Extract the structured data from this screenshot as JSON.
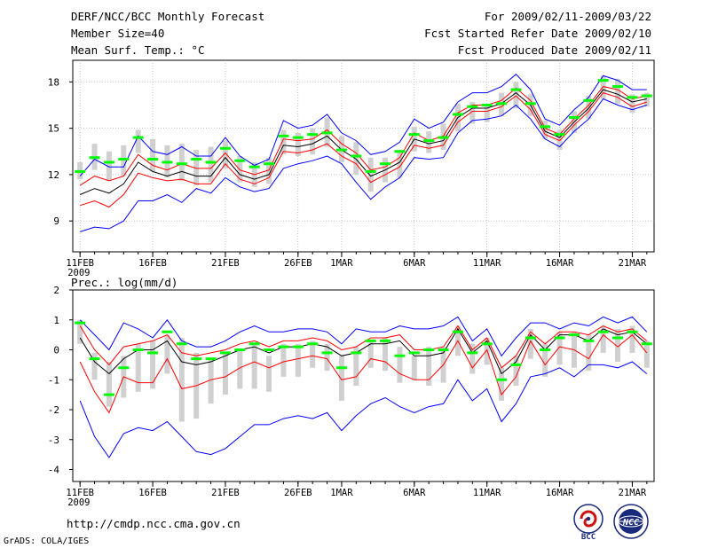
{
  "header": {
    "title": "DERF/NCC/BCC Monthly Forecast",
    "member_size": "Member Size=40",
    "variable_label": "Mean Surf. Temp.: °C",
    "period": "For 2009/02/11-2009/03/22",
    "fcst_started": "Fcst Started Refer Date 2009/02/10",
    "fcst_produced": "Fcst Produced Date 2009/02/11"
  },
  "footer": {
    "url": "http://cmdp.ncc.cma.gov.cn",
    "grads": "GrADS: COLA/IGES",
    "logo_bcc": "BCC",
    "logo_ncc": "NCC"
  },
  "colors": {
    "observed": "#00ff00",
    "ensemble_range": "#d0d0d0",
    "mean": "#000000",
    "spread_inner": "#ff0000",
    "spread_outer": "#0000ff",
    "grid": "#a0a0a0"
  },
  "chart_data": [
    {
      "type": "line",
      "title": "Mean Surf. Temp.: °C",
      "x_tick_labels": [
        "11FEB",
        "16FEB",
        "21FEB",
        "26FEB",
        "1MAR",
        "6MAR",
        "11MAR",
        "16MAR",
        "21MAR"
      ],
      "x_tick_days": [
        0,
        5,
        10,
        15,
        18,
        23,
        28,
        33,
        38
      ],
      "x_year_label": "2009",
      "x_range_days": [
        -0.5,
        39.5
      ],
      "ylim": [
        7,
        19.4
      ],
      "yticks": [
        9,
        12,
        15,
        18
      ],
      "grid": true,
      "days": [
        0,
        1,
        2,
        3,
        4,
        5,
        6,
        7,
        8,
        9,
        10,
        11,
        12,
        13,
        14,
        15,
        16,
        17,
        18,
        19,
        20,
        21,
        22,
        23,
        24,
        25,
        26,
        27,
        28,
        29,
        30,
        31,
        32,
        33,
        34,
        35,
        36,
        37,
        38,
        39
      ],
      "series": [
        {
          "name": "ensemble max",
          "color": "blue",
          "values": [
            11.9,
            13.0,
            12.5,
            12.5,
            14.5,
            13.5,
            13.3,
            13.8,
            13.2,
            13.2,
            14.4,
            13.2,
            12.6,
            13.0,
            15.5,
            15.0,
            15.2,
            15.9,
            14.7,
            14.2,
            13.3,
            13.5,
            14.1,
            15.6,
            15.0,
            15.4,
            16.7,
            17.3,
            17.3,
            17.7,
            18.5,
            17.5,
            15.6,
            15.2,
            16.2,
            17.0,
            18.4,
            18.1,
            17.5,
            17.5
          ]
        },
        {
          "name": "mean + spread",
          "color": "red",
          "values": [
            11.3,
            11.9,
            11.6,
            11.9,
            13.3,
            12.6,
            12.3,
            12.7,
            12.4,
            12.4,
            13.4,
            12.3,
            12.0,
            12.3,
            14.3,
            14.2,
            14.3,
            14.9,
            14.0,
            13.4,
            12.3,
            12.5,
            13.1,
            14.7,
            14.2,
            14.5,
            16.0,
            16.5,
            16.5,
            16.8,
            17.6,
            16.8,
            15.0,
            14.6,
            15.6,
            16.5,
            17.7,
            17.5,
            16.9,
            17.1
          ]
        },
        {
          "name": "ensemble mean",
          "color": "black",
          "values": [
            10.7,
            11.1,
            10.8,
            11.4,
            12.8,
            12.2,
            11.9,
            12.2,
            11.9,
            11.9,
            13.1,
            12.0,
            11.7,
            12.0,
            13.9,
            13.8,
            14.0,
            14.5,
            13.6,
            13.0,
            11.9,
            12.3,
            12.8,
            14.3,
            14.0,
            14.2,
            15.7,
            16.3,
            16.3,
            16.6,
            17.3,
            16.5,
            14.8,
            14.4,
            15.4,
            16.3,
            17.5,
            17.2,
            16.7,
            16.9
          ]
        },
        {
          "name": "mean - spread",
          "color": "red",
          "values": [
            10.0,
            10.3,
            9.9,
            10.7,
            12.1,
            11.8,
            11.6,
            11.7,
            11.4,
            11.4,
            12.7,
            11.7,
            11.4,
            11.8,
            13.5,
            13.4,
            13.6,
            14.0,
            13.2,
            12.7,
            11.5,
            12.0,
            12.5,
            13.9,
            13.7,
            13.9,
            15.4,
            16.1,
            16.1,
            16.4,
            17.1,
            16.2,
            14.6,
            14.2,
            15.2,
            16.1,
            17.3,
            17.0,
            16.4,
            16.7
          ]
        },
        {
          "name": "ensemble min",
          "color": "blue",
          "values": [
            8.3,
            8.6,
            8.5,
            9.0,
            10.3,
            10.3,
            10.7,
            10.2,
            11.1,
            10.8,
            11.8,
            11.2,
            10.9,
            11.1,
            12.4,
            12.7,
            12.9,
            13.2,
            12.7,
            11.5,
            10.4,
            11.2,
            11.8,
            13.1,
            13.0,
            13.1,
            14.7,
            15.5,
            15.6,
            15.8,
            16.5,
            15.6,
            14.3,
            13.8,
            14.8,
            15.6,
            16.9,
            16.5,
            16.2,
            16.5
          ]
        }
      ],
      "observed": [
        12.2,
        13.1,
        12.8,
        13.0,
        14.4,
        13.0,
        12.8,
        12.7,
        13.0,
        12.8,
        13.7,
        12.9,
        12.5,
        12.7,
        14.5,
        14.4,
        14.6,
        14.7,
        13.6,
        13.2,
        12.2,
        12.7,
        13.5,
        14.6,
        14.2,
        14.4,
        15.9,
        16.4,
        16.5,
        16.6,
        17.5,
        16.6,
        15.1,
        14.6,
        15.7,
        16.8,
        18.1,
        17.7,
        17.0,
        17.1
      ],
      "range_bars": [
        [
          11.7,
          12.8
        ],
        [
          12.3,
          14.0
        ],
        [
          11.6,
          13.5
        ],
        [
          11.9,
          13.9
        ],
        [
          13.4,
          14.9
        ],
        [
          12.2,
          14.3
        ],
        [
          11.8,
          13.9
        ],
        [
          11.6,
          14.0
        ],
        [
          11.3,
          13.6
        ],
        [
          11.5,
          13.8
        ],
        [
          12.4,
          14.2
        ],
        [
          11.5,
          13.2
        ],
        [
          11.2,
          12.8
        ],
        [
          11.4,
          13.1
        ],
        [
          13.3,
          14.9
        ],
        [
          13.2,
          14.7
        ],
        [
          13.3,
          15.0
        ],
        [
          13.8,
          15.7
        ],
        [
          12.8,
          14.5
        ],
        [
          12.0,
          14.1
        ],
        [
          10.9,
          13.1
        ],
        [
          11.5,
          13.1
        ],
        [
          11.8,
          13.6
        ],
        [
          13.5,
          15.1
        ],
        [
          13.4,
          14.8
        ],
        [
          13.6,
          15.3
        ],
        [
          14.8,
          16.6
        ],
        [
          15.3,
          16.7
        ],
        [
          15.4,
          16.5
        ],
        [
          15.8,
          17.3
        ],
        [
          16.3,
          18.0
        ],
        [
          15.8,
          17.2
        ],
        [
          14.3,
          15.5
        ],
        [
          13.6,
          14.9
        ],
        [
          14.7,
          16.1
        ],
        [
          15.6,
          17.1
        ],
        [
          16.9,
          18.4
        ],
        [
          16.6,
          18.2
        ],
        [
          16.0,
          17.2
        ],
        [
          16.4,
          17.3
        ]
      ]
    },
    {
      "type": "line",
      "title": "Prec.: log(mm/d)",
      "x_tick_labels": [
        "11FEB",
        "16FEB",
        "21FEB",
        "26FEB",
        "1MAR",
        "6MAR",
        "11MAR",
        "16MAR",
        "21MAR"
      ],
      "x_tick_days": [
        0,
        5,
        10,
        15,
        18,
        23,
        28,
        33,
        38
      ],
      "x_year_label": "2009",
      "x_range_days": [
        -0.5,
        39.5
      ],
      "ylim": [
        -4.4,
        2
      ],
      "yticks": [
        -4,
        -3,
        -2,
        -1,
        0,
        1,
        2
      ],
      "grid": false,
      "days": [
        0,
        1,
        2,
        3,
        4,
        5,
        6,
        7,
        8,
        9,
        10,
        11,
        12,
        13,
        14,
        15,
        16,
        17,
        18,
        19,
        20,
        21,
        22,
        23,
        24,
        25,
        26,
        27,
        28,
        29,
        30,
        31,
        32,
        33,
        34,
        35,
        36,
        37,
        38,
        39
      ],
      "series": [
        {
          "name": "ensemble max",
          "color": "blue",
          "values": [
            1.0,
            0.5,
            0.0,
            0.9,
            0.7,
            0.4,
            1.0,
            0.3,
            0.1,
            0.1,
            0.3,
            0.6,
            0.8,
            0.6,
            0.6,
            0.7,
            0.7,
            0.6,
            0.2,
            0.7,
            0.6,
            0.6,
            0.8,
            0.7,
            0.7,
            0.8,
            1.1,
            0.3,
            0.7,
            -0.2,
            0.4,
            0.9,
            0.9,
            0.7,
            0.9,
            0.8,
            1.1,
            0.9,
            1.1,
            0.6
          ]
        },
        {
          "name": "ensemble mean",
          "color": "black",
          "values": [
            0.4,
            -0.4,
            -0.8,
            -0.3,
            0.0,
            0.0,
            0.3,
            -0.4,
            -0.5,
            -0.4,
            -0.2,
            0.0,
            0.1,
            -0.1,
            0.1,
            0.1,
            0.2,
            0.1,
            -0.2,
            -0.1,
            0.2,
            0.2,
            0.3,
            -0.2,
            -0.2,
            -0.1,
            0.7,
            -0.1,
            0.3,
            -0.8,
            -0.4,
            0.5,
            0.0,
            0.5,
            0.5,
            0.3,
            0.7,
            0.5,
            0.6,
            0.2
          ]
        },
        {
          "name": "mean + spread",
          "color": "red",
          "values": [
            0.8,
            0.0,
            -0.5,
            0.1,
            0.2,
            0.3,
            0.5,
            -0.1,
            -0.2,
            -0.1,
            0.0,
            0.2,
            0.3,
            0.1,
            0.3,
            0.3,
            0.4,
            0.3,
            0.0,
            0.1,
            0.4,
            0.4,
            0.5,
            0.0,
            0.0,
            0.1,
            0.8,
            0.0,
            0.4,
            -0.6,
            -0.2,
            0.6,
            0.2,
            0.6,
            0.6,
            0.5,
            0.8,
            0.6,
            0.7,
            0.3
          ]
        },
        {
          "name": "mean - spread",
          "color": "red",
          "values": [
            -0.4,
            -1.4,
            -2.1,
            -0.9,
            -1.1,
            -1.1,
            -0.3,
            -1.3,
            -1.2,
            -1.0,
            -0.9,
            -0.6,
            -0.4,
            -0.6,
            -0.4,
            -0.3,
            -0.2,
            -0.3,
            -1.0,
            -0.9,
            -0.3,
            -0.4,
            -0.8,
            -1.0,
            -1.0,
            -0.5,
            0.3,
            -0.6,
            0.0,
            -1.5,
            -0.9,
            0.3,
            -0.5,
            0.1,
            0.0,
            -0.3,
            0.5,
            0.1,
            0.5,
            -0.1
          ]
        },
        {
          "name": "ensemble min",
          "color": "blue",
          "values": [
            -1.7,
            -2.9,
            -3.6,
            -2.8,
            -2.6,
            -2.7,
            -2.4,
            -2.9,
            -3.4,
            -3.5,
            -3.3,
            -2.9,
            -2.5,
            -2.5,
            -2.3,
            -2.2,
            -2.3,
            -2.1,
            -2.7,
            -2.2,
            -1.8,
            -1.6,
            -1.9,
            -2.1,
            -1.9,
            -1.8,
            -1.0,
            -1.7,
            -1.3,
            -2.4,
            -1.8,
            -0.9,
            -0.8,
            -0.6,
            -0.9,
            -0.5,
            -0.5,
            -0.6,
            -0.4,
            -0.8
          ]
        }
      ],
      "observed": [
        0.9,
        -0.3,
        -1.5,
        -0.6,
        0.0,
        -0.1,
        0.6,
        0.2,
        -0.3,
        -0.3,
        -0.1,
        0.0,
        0.2,
        0.0,
        0.1,
        0.1,
        0.2,
        -0.1,
        -0.6,
        -0.1,
        0.3,
        0.3,
        -0.2,
        -0.1,
        0.0,
        0.0,
        0.6,
        -0.1,
        0.2,
        -1.0,
        -0.5,
        0.4,
        0.0,
        0.4,
        0.5,
        0.3,
        0.6,
        0.4,
        0.6,
        0.2
      ],
      "range_bars": [
        [
          0.2,
          1.0
        ],
        [
          -1.0,
          -0.1
        ],
        [
          -1.9,
          -0.4
        ],
        [
          -1.6,
          -0.2
        ],
        [
          -1.4,
          0.2
        ],
        [
          -1.3,
          0.3
        ],
        [
          -0.8,
          0.5
        ],
        [
          -2.4,
          0.4
        ],
        [
          -2.3,
          -0.1
        ],
        [
          -1.8,
          -0.3
        ],
        [
          -1.5,
          -0.1
        ],
        [
          -1.3,
          0.0
        ],
        [
          -1.3,
          0.2
        ],
        [
          -1.4,
          -0.2
        ],
        [
          -0.9,
          0.2
        ],
        [
          -0.9,
          0.2
        ],
        [
          -0.6,
          0.3
        ],
        [
          -0.7,
          0.2
        ],
        [
          -1.7,
          -0.2
        ],
        [
          -1.2,
          0.1
        ],
        [
          -0.6,
          0.3
        ],
        [
          -0.7,
          0.4
        ],
        [
          -1.1,
          0.1
        ],
        [
          -1.0,
          -0.2
        ],
        [
          -1.2,
          0.1
        ],
        [
          -1.1,
          0.1
        ],
        [
          -0.2,
          0.8
        ],
        [
          -0.8,
          0.2
        ],
        [
          -0.5,
          0.4
        ],
        [
          -1.7,
          -0.6
        ],
        [
          -1.2,
          -0.2
        ],
        [
          -0.3,
          0.7
        ],
        [
          -0.9,
          0.2
        ],
        [
          -0.5,
          0.6
        ],
        [
          -0.6,
          0.6
        ],
        [
          -0.7,
          0.5
        ],
        [
          -0.1,
          0.8
        ],
        [
          -0.4,
          0.7
        ],
        [
          -0.1,
          0.8
        ],
        [
          -0.6,
          0.3
        ]
      ]
    }
  ]
}
